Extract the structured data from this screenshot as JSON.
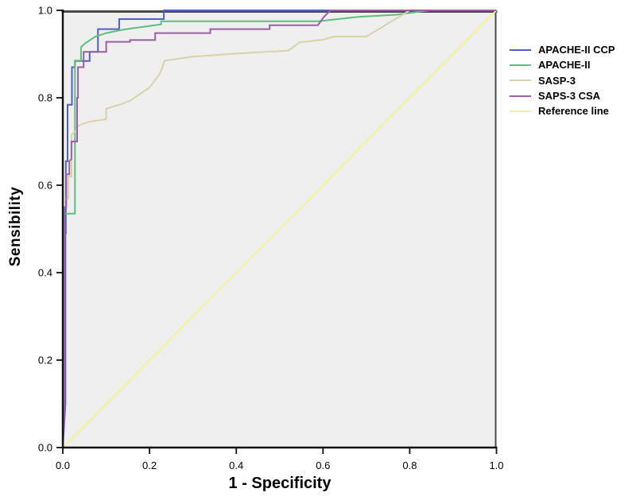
{
  "chart_data": {
    "type": "line",
    "subtype": "roc-curves",
    "title": "",
    "xlabel": "1 - Specificity",
    "ylabel": "Sensibility",
    "xlim": [
      0,
      1
    ],
    "ylim": [
      0,
      1
    ],
    "xticks": [
      0.0,
      0.2,
      0.4,
      0.6,
      0.8,
      1.0
    ],
    "yticks": [
      0.0,
      0.2,
      0.4,
      0.6,
      0.8,
      1.0
    ],
    "xtick_labels": [
      "0.0",
      "0.2",
      "0.4",
      "0.6",
      "0.8",
      "1.0"
    ],
    "ytick_labels": [
      "0.0",
      "0.2",
      "0.4",
      "0.6",
      "0.8",
      "1.0"
    ],
    "grid": false,
    "legend_position": "right",
    "plot_bg_color": "#efefef",
    "outer_bg_color": "#ffffff",
    "axis_color": "#111111",
    "frame_color": "#4a4a4a",
    "series": [
      {
        "name": "APACHE-II CCP",
        "color": "#4f61c3",
        "points": [
          [
            0,
            0
          ],
          [
            0.006,
            0.1
          ],
          [
            0.006,
            0.49
          ],
          [
            0.007,
            0.49
          ],
          [
            0.007,
            0.655
          ],
          [
            0.011,
            0.655
          ],
          [
            0.011,
            0.784
          ],
          [
            0.021,
            0.784
          ],
          [
            0.021,
            0.87
          ],
          [
            0.028,
            0.87
          ],
          [
            0.028,
            0.884
          ],
          [
            0.062,
            0.884
          ],
          [
            0.062,
            0.905
          ],
          [
            0.081,
            0.905
          ],
          [
            0.081,
            0.957
          ],
          [
            0.13,
            0.957
          ],
          [
            0.13,
            0.98
          ],
          [
            0.233,
            0.98
          ],
          [
            0.233,
            1
          ],
          [
            1,
            1
          ]
        ]
      },
      {
        "name": "APACHE-II",
        "color": "#5cbf7b",
        "points": [
          [
            0,
            0
          ],
          [
            0,
            0.535
          ],
          [
            0.028,
            0.535
          ],
          [
            0.028,
            0.885
          ],
          [
            0.042,
            0.885
          ],
          [
            0.042,
            0.916
          ],
          [
            0.052,
            0.925
          ],
          [
            0.075,
            0.94
          ],
          [
            0.1,
            0.948
          ],
          [
            0.14,
            0.956
          ],
          [
            0.19,
            0.963
          ],
          [
            0.227,
            0.968
          ],
          [
            0.227,
            0.975
          ],
          [
            0.59,
            0.975
          ],
          [
            0.68,
            0.985
          ],
          [
            0.77,
            0.99
          ],
          [
            0.845,
            1
          ],
          [
            1,
            1
          ]
        ]
      },
      {
        "name": "SASP-3",
        "color": "#d9d2a6",
        "points": [
          [
            0,
            0
          ],
          [
            0,
            0.57
          ],
          [
            0.013,
            0.57
          ],
          [
            0.013,
            0.62
          ],
          [
            0.02,
            0.62
          ],
          [
            0.02,
            0.715
          ],
          [
            0.03,
            0.724
          ],
          [
            0.033,
            0.735
          ],
          [
            0.05,
            0.742
          ],
          [
            0.065,
            0.746
          ],
          [
            0.1,
            0.751
          ],
          [
            0.1,
            0.775
          ],
          [
            0.13,
            0.784
          ],
          [
            0.155,
            0.793
          ],
          [
            0.2,
            0.824
          ],
          [
            0.221,
            0.851
          ],
          [
            0.227,
            0.863
          ],
          [
            0.235,
            0.885
          ],
          [
            0.3,
            0.894
          ],
          [
            0.4,
            0.901
          ],
          [
            0.52,
            0.908
          ],
          [
            0.547,
            0.927
          ],
          [
            0.6,
            0.933
          ],
          [
            0.625,
            0.94
          ],
          [
            0.7,
            0.94
          ],
          [
            0.775,
            0.985
          ],
          [
            0.8,
            1
          ],
          [
            1,
            1
          ]
        ]
      },
      {
        "name": "SAPS-3 CSA",
        "color": "#9c5fa5",
        "points": [
          [
            0,
            0
          ],
          [
            0.004,
            0.1
          ],
          [
            0.004,
            0.55
          ],
          [
            0.008,
            0.55
          ],
          [
            0.008,
            0.625
          ],
          [
            0.015,
            0.625
          ],
          [
            0.015,
            0.655
          ],
          [
            0.02,
            0.66
          ],
          [
            0.02,
            0.7
          ],
          [
            0.033,
            0.7
          ],
          [
            0.033,
            0.8
          ],
          [
            0.035,
            0.8
          ],
          [
            0.035,
            0.87
          ],
          [
            0.048,
            0.87
          ],
          [
            0.048,
            0.905
          ],
          [
            0.1,
            0.905
          ],
          [
            0.1,
            0.928
          ],
          [
            0.155,
            0.928
          ],
          [
            0.155,
            0.932
          ],
          [
            0.213,
            0.932
          ],
          [
            0.213,
            0.948
          ],
          [
            0.34,
            0.948
          ],
          [
            0.34,
            0.957
          ],
          [
            0.477,
            0.957
          ],
          [
            0.477,
            0.966
          ],
          [
            0.588,
            0.966
          ],
          [
            0.602,
            0.985
          ],
          [
            0.617,
            1
          ],
          [
            1,
            1
          ]
        ]
      },
      {
        "name": "Reference line",
        "color": "#f6f294",
        "points": [
          [
            0,
            0
          ],
          [
            1,
            1
          ]
        ]
      }
    ]
  }
}
